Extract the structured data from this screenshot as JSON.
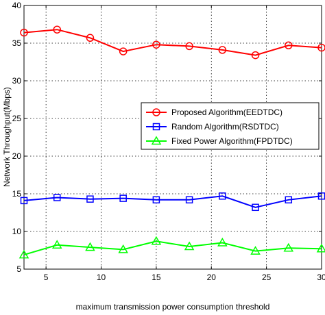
{
  "chart_data": {
    "type": "line",
    "title": "",
    "xlabel": "maximum transmission power consumption threshold",
    "ylabel": "Network Throughput(Mbps)",
    "xlim": [
      3,
      30
    ],
    "ylim": [
      5,
      40
    ],
    "xticks": [
      5,
      10,
      15,
      20,
      25,
      30
    ],
    "yticks": [
      5,
      10,
      15,
      20,
      25,
      30,
      35,
      40
    ],
    "grid": true,
    "legend_position": "middle-right",
    "x": [
      3,
      6,
      9,
      12,
      15,
      18,
      21,
      24,
      27,
      30
    ],
    "series": [
      {
        "name": "Proposed Algorithm(EEDTDC)",
        "color": "#ff0000",
        "marker": "circle",
        "values": [
          36.4,
          36.8,
          35.7,
          33.9,
          34.8,
          34.6,
          34.1,
          33.4,
          34.7,
          34.4
        ]
      },
      {
        "name": "Random Algorithm(RSDTDC)",
        "color": "#0000ff",
        "marker": "square",
        "values": [
          14.1,
          14.5,
          14.3,
          14.4,
          14.2,
          14.2,
          14.7,
          13.2,
          14.2,
          14.7
        ]
      },
      {
        "name": "Fixed Power Algorithm(FPDTDC)",
        "color": "#00ff00",
        "marker": "triangle",
        "values": [
          6.9,
          8.2,
          7.9,
          7.6,
          8.7,
          8.0,
          8.5,
          7.4,
          7.8,
          7.7
        ]
      }
    ]
  }
}
